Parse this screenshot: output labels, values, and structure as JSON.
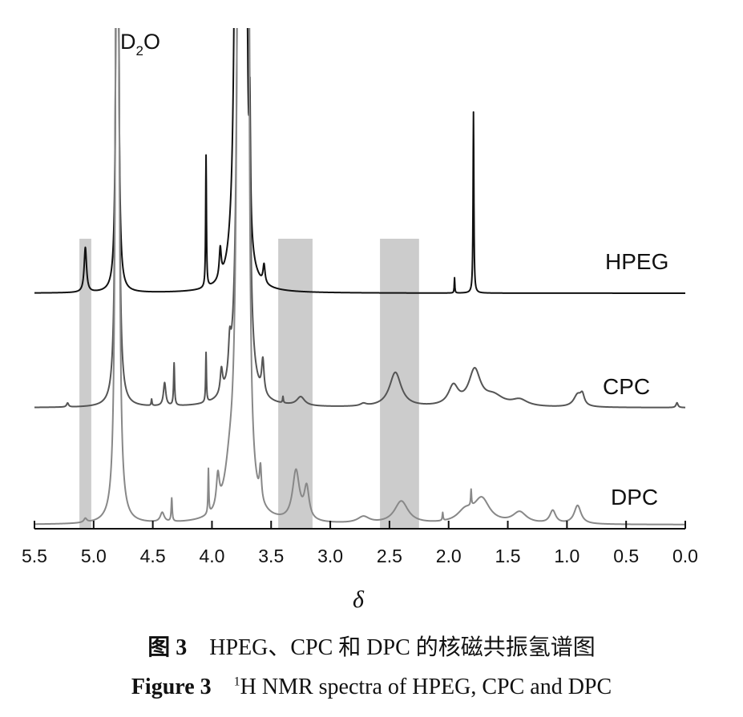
{
  "chart_data": {
    "type": "line",
    "xlabel": "δ",
    "ylabel": "",
    "xlim": [
      5.5,
      0.0
    ],
    "x_reversed": true,
    "grid": false,
    "x_ticks": [
      "5.5",
      "5.0",
      "4.5",
      "4.0",
      "3.5",
      "3.0",
      "2.5",
      "2.0",
      "1.5",
      "1.0",
      "0.5",
      "0.0"
    ],
    "y_axis_shown": false,
    "intensity_units": "arbitrary (stacked spectra)",
    "annotations": [
      {
        "text_main": "D",
        "text_sub": "2",
        "text_end": "O",
        "delta": 4.8
      }
    ],
    "highlight_bands": [
      {
        "from": 5.12,
        "to": 5.02
      },
      {
        "from": 3.44,
        "to": 3.15
      },
      {
        "from": 2.58,
        "to": 2.25
      }
    ],
    "band_color": "#cccccc",
    "series": [
      {
        "name": "HPEG",
        "color": "#111111",
        "offset": 0,
        "peaks": [
          {
            "delta": 5.07,
            "height": 56,
            "width": 0.012
          },
          {
            "delta": 4.8,
            "height": 2000,
            "width": 0.006
          },
          {
            "delta": 4.05,
            "height": 165,
            "width": 0.004
          },
          {
            "delta": 3.93,
            "height": 37,
            "width": 0.01
          },
          {
            "delta": 3.78,
            "height": 3000,
            "width": 0.012
          },
          {
            "delta": 3.72,
            "height": 2000,
            "width": 0.008
          },
          {
            "delta": 3.68,
            "height": 150,
            "width": 0.006
          },
          {
            "delta": 3.56,
            "height": 23,
            "width": 0.01
          },
          {
            "delta": 1.95,
            "height": 19,
            "width": 0.003
          },
          {
            "delta": 1.79,
            "height": 226,
            "width": 0.004
          }
        ]
      },
      {
        "name": "CPC",
        "color": "#555555",
        "offset": 143,
        "peaks": [
          {
            "delta": 5.22,
            "height": 5,
            "width": 0.01
          },
          {
            "delta": 4.8,
            "height": 2000,
            "width": 0.008
          },
          {
            "delta": 4.51,
            "height": 8,
            "width": 0.004
          },
          {
            "delta": 4.4,
            "height": 29,
            "width": 0.012
          },
          {
            "delta": 4.32,
            "height": 53,
            "width": 0.005
          },
          {
            "delta": 4.05,
            "height": 62,
            "width": 0.004
          },
          {
            "delta": 3.92,
            "height": 30,
            "width": 0.012
          },
          {
            "delta": 3.85,
            "height": 40,
            "width": 0.012
          },
          {
            "delta": 3.76,
            "height": 3000,
            "width": 0.012
          },
          {
            "delta": 3.7,
            "height": 1500,
            "width": 0.01
          },
          {
            "delta": 3.57,
            "height": 42,
            "width": 0.012
          },
          {
            "delta": 3.4,
            "height": 8,
            "width": 0.004
          },
          {
            "delta": 3.25,
            "height": 11,
            "width": 0.04
          },
          {
            "delta": 2.72,
            "height": 3,
            "width": 0.03
          },
          {
            "delta": 2.45,
            "height": 43,
            "width": 0.06
          },
          {
            "delta": 1.96,
            "height": 24,
            "width": 0.05
          },
          {
            "delta": 1.78,
            "height": 44,
            "width": 0.06
          },
          {
            "delta": 1.62,
            "height": 12,
            "width": 0.1
          },
          {
            "delta": 1.4,
            "height": 8,
            "width": 0.08
          },
          {
            "delta": 0.91,
            "height": 15,
            "width": 0.04
          },
          {
            "delta": 0.87,
            "height": 12,
            "width": 0.02
          },
          {
            "delta": 0.07,
            "height": 6,
            "width": 0.01
          }
        ]
      },
      {
        "name": "DPC",
        "color": "#888888",
        "offset": 289,
        "peaks": [
          {
            "delta": 5.07,
            "height": 5,
            "width": 0.015
          },
          {
            "delta": 4.8,
            "height": 2000,
            "width": 0.01
          },
          {
            "delta": 4.42,
            "height": 12,
            "width": 0.02
          },
          {
            "delta": 4.34,
            "height": 29,
            "width": 0.005
          },
          {
            "delta": 4.03,
            "height": 56,
            "width": 0.004
          },
          {
            "delta": 3.95,
            "height": 40,
            "width": 0.015
          },
          {
            "delta": 3.85,
            "height": 40,
            "width": 0.05
          },
          {
            "delta": 3.76,
            "height": 3000,
            "width": 0.014
          },
          {
            "delta": 3.7,
            "height": 1200,
            "width": 0.012
          },
          {
            "delta": 3.59,
            "height": 40,
            "width": 0.01
          },
          {
            "delta": 3.29,
            "height": 62,
            "width": 0.035
          },
          {
            "delta": 3.2,
            "height": 40,
            "width": 0.025
          },
          {
            "delta": 2.72,
            "height": 8,
            "width": 0.06
          },
          {
            "delta": 2.4,
            "height": 28,
            "width": 0.07
          },
          {
            "delta": 2.05,
            "height": 10,
            "width": 0.004
          },
          {
            "delta": 1.86,
            "height": 14,
            "width": 0.08
          },
          {
            "delta": 1.81,
            "height": 20,
            "width": 0.004
          },
          {
            "delta": 1.72,
            "height": 30,
            "width": 0.08
          },
          {
            "delta": 1.4,
            "height": 14,
            "width": 0.07
          },
          {
            "delta": 1.12,
            "height": 16,
            "width": 0.03
          },
          {
            "delta": 0.91,
            "height": 23,
            "width": 0.035
          }
        ]
      }
    ]
  },
  "captions": {
    "cn_label": "图 3",
    "cn_text": "HPEG、CPC 和 DPC 的核磁共振氢谱图",
    "en_label": "Figure 3",
    "en_sup": "1",
    "en_text": "H NMR spectra of HPEG, CPC and DPC"
  }
}
